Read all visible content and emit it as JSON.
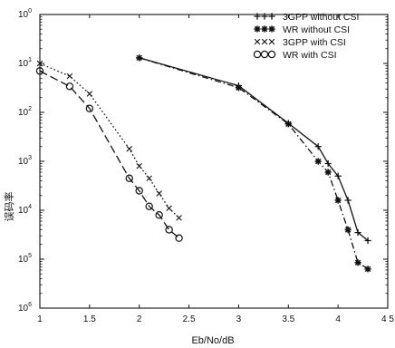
{
  "chart_data": {
    "type": "line",
    "title": "",
    "xlabel": "Eb/No/dB",
    "ylabel": "误码率",
    "xlim": [
      1,
      4.5
    ],
    "ylim_log10": [
      -6,
      0
    ],
    "y_scale": "log",
    "grid": false,
    "legend_position": "top-right",
    "x_ticks": [
      1,
      1.5,
      2,
      2.5,
      3,
      3.5,
      4,
      4.5
    ],
    "x_tick_labels": [
      "1",
      "1.5",
      "2",
      "2.5",
      "3",
      "3.5",
      "4",
      "4 5"
    ],
    "y_tick_labels": [
      {
        "base": "10",
        "exp": "0"
      },
      {
        "base": "10",
        "exp": "1"
      },
      {
        "base": "10",
        "exp": "2"
      },
      {
        "base": "10",
        "exp": "3"
      },
      {
        "base": "10",
        "exp": "4"
      },
      {
        "base": "10",
        "exp": "5"
      },
      {
        "base": "10",
        "exp": "6"
      }
    ],
    "series": [
      {
        "name": "3GPP without CSI",
        "legend_symbol": "+++",
        "marker": "plus",
        "line": "solid",
        "x": [
          2.0,
          3.0,
          3.5,
          3.8,
          3.9,
          4.0,
          4.1,
          4.2,
          4.3
        ],
        "y": [
          0.13,
          0.035,
          0.006,
          0.002,
          0.0009,
          0.0005,
          0.00016,
          3.5e-05,
          2.4e-05
        ]
      },
      {
        "name": "WR without CSI",
        "legend_symbol": "***",
        "marker": "star",
        "line": "dashdot",
        "x": [
          2.0,
          3.0,
          3.5,
          3.8,
          3.9,
          4.0,
          4.1,
          4.2,
          4.3
        ],
        "y": [
          0.13,
          0.032,
          0.0058,
          0.001,
          0.0006,
          0.00016,
          4e-05,
          8.5e-06,
          6.3e-06
        ]
      },
      {
        "name": "3GPP with CSI",
        "legend_symbol": "×××",
        "marker": "x",
        "line": "dotted",
        "x": [
          1.0,
          1.3,
          1.5,
          1.9,
          2.0,
          2.1,
          2.2,
          2.3,
          2.4
        ],
        "y": [
          0.1,
          0.055,
          0.024,
          0.0018,
          0.0008,
          0.00045,
          0.00022,
          0.00011,
          7e-05
        ]
      },
      {
        "name": "WR with CSI",
        "legend_symbol": "ooo",
        "marker": "circle",
        "line": "dashed",
        "x": [
          1.0,
          1.3,
          1.5,
          1.9,
          2.0,
          2.1,
          2.2,
          2.3,
          2.4
        ],
        "y": [
          0.07,
          0.034,
          0.012,
          0.00045,
          0.00025,
          0.00012,
          8e-05,
          4e-05,
          2.7e-05
        ]
      }
    ]
  }
}
